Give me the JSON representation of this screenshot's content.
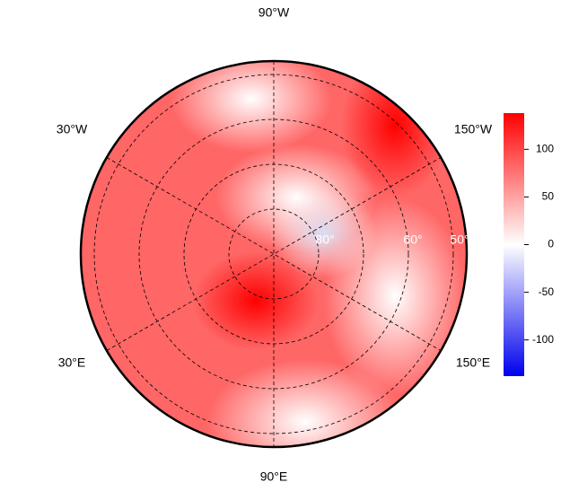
{
  "map": {
    "longitude_labels": [
      "90°W",
      "30°W",
      "150°W",
      "30°E",
      "150°E",
      "90°E"
    ],
    "latitude_labels": [
      "80°",
      "60°",
      "50°"
    ]
  },
  "colorbar": {
    "lim": [
      -138,
      138
    ],
    "ticks": [
      -100,
      -50,
      0,
      50,
      100
    ],
    "colors": [
      "#0000ee",
      "#ffffff",
      "#ff0000"
    ]
  }
}
